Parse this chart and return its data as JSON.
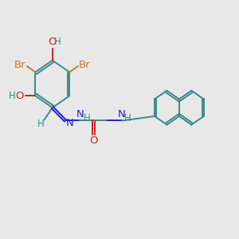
{
  "bg_color": "#e8e8e8",
  "bond_color": "#3a8a8a",
  "br_color": "#cc7722",
  "n_color": "#2222cc",
  "o_color": "#cc2222",
  "h_color": "#3a8a8a",
  "bond_width": 1.4,
  "figsize": [
    3.0,
    3.0
  ],
  "dpi": 100,
  "xlim": [
    0,
    12
  ],
  "ylim": [
    0,
    10
  ]
}
